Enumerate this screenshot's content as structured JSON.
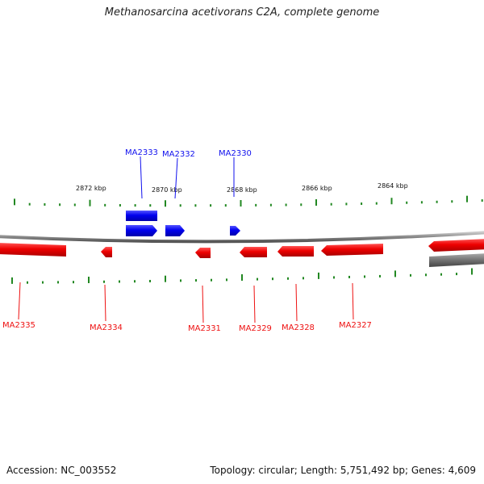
{
  "title": "Methanosarcina acetivorans C2A, complete genome",
  "footer": {
    "accession": "Accession: NC_003552",
    "topology": "Topology: circular; Length: 5,751,492 bp; Genes: 4,609"
  },
  "colors": {
    "forward_strand": "#1010ee",
    "reverse_strand": "#ee1111",
    "tick": "#228822",
    "backbone": "#888888",
    "other_feature": "#777777"
  },
  "scale_labels": [
    "2872 kbp",
    "2870 kbp",
    "2868 kbp",
    "2866 kbp",
    "2864 kbp"
  ],
  "forward_genes": [
    "MA2333",
    "MA2332",
    "MA2330"
  ],
  "reverse_genes": [
    "MA2335",
    "MA2334",
    "MA2331",
    "MA2329",
    "MA2328",
    "MA2327"
  ]
}
